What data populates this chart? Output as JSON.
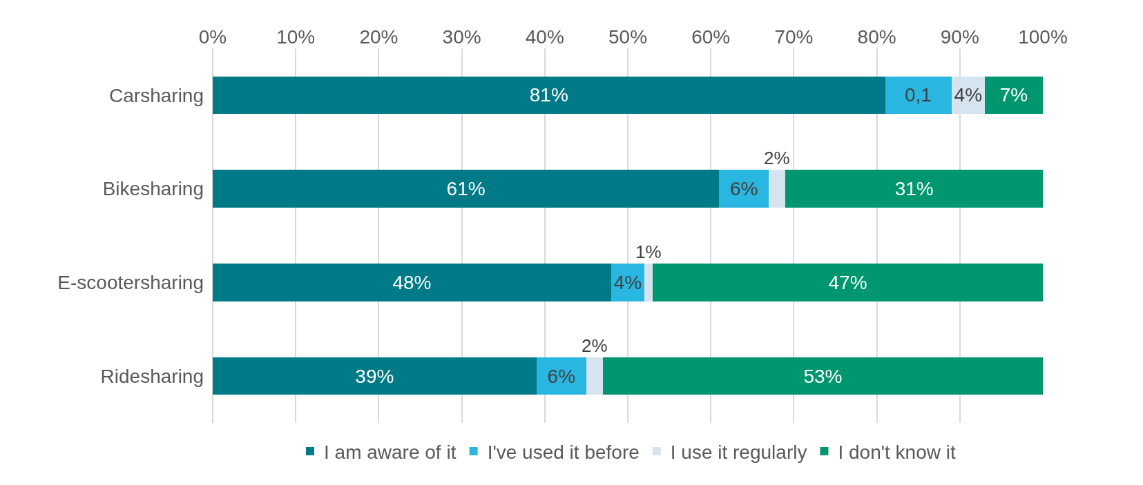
{
  "chart_data": {
    "type": "bar",
    "orientation": "horizontal",
    "stacked": true,
    "categories": [
      "Carsharing",
      "Bikesharing",
      "E-scootersharing",
      "Ridesharing"
    ],
    "series": [
      {
        "name": "I am aware of it",
        "color": "#007a87",
        "values": [
          81,
          61,
          48,
          39
        ],
        "value_labels": [
          "81%",
          "61%",
          "48%",
          "39%"
        ]
      },
      {
        "name": "I've used it before",
        "color": "#29b6e0",
        "values": [
          8,
          6,
          4,
          6
        ],
        "value_labels": [
          null,
          "6%",
          "4%",
          "6%"
        ]
      },
      {
        "name": "I use it regularly",
        "color": "#d6e4f0",
        "values": [
          4,
          2,
          1,
          2
        ],
        "value_labels": [
          "4%",
          "2%",
          "1%",
          "2%"
        ]
      },
      {
        "name": "I don't know it",
        "color": "#009670",
        "values": [
          7,
          31,
          47,
          53
        ],
        "value_labels": [
          "7%",
          "31%",
          "47%",
          "53%"
        ]
      }
    ],
    "xlim": [
      0,
      100
    ],
    "xticks": [
      {
        "value": 0,
        "label": "0%"
      },
      {
        "value": 10,
        "label": "10%"
      },
      {
        "value": 20,
        "label": "20%"
      },
      {
        "value": 30,
        "label": "30%"
      },
      {
        "value": 40,
        "label": "40%"
      },
      {
        "value": 50,
        "label": "50%"
      },
      {
        "value": 60,
        "label": "60%"
      },
      {
        "value": 70,
        "label": "70%"
      },
      {
        "value": 80,
        "label": "80%"
      },
      {
        "value": 90,
        "label": "90%"
      },
      {
        "value": 100,
        "label": "100%"
      }
    ],
    "annotations": [
      "0,1"
    ],
    "grid": "x",
    "legend": "bottom"
  }
}
